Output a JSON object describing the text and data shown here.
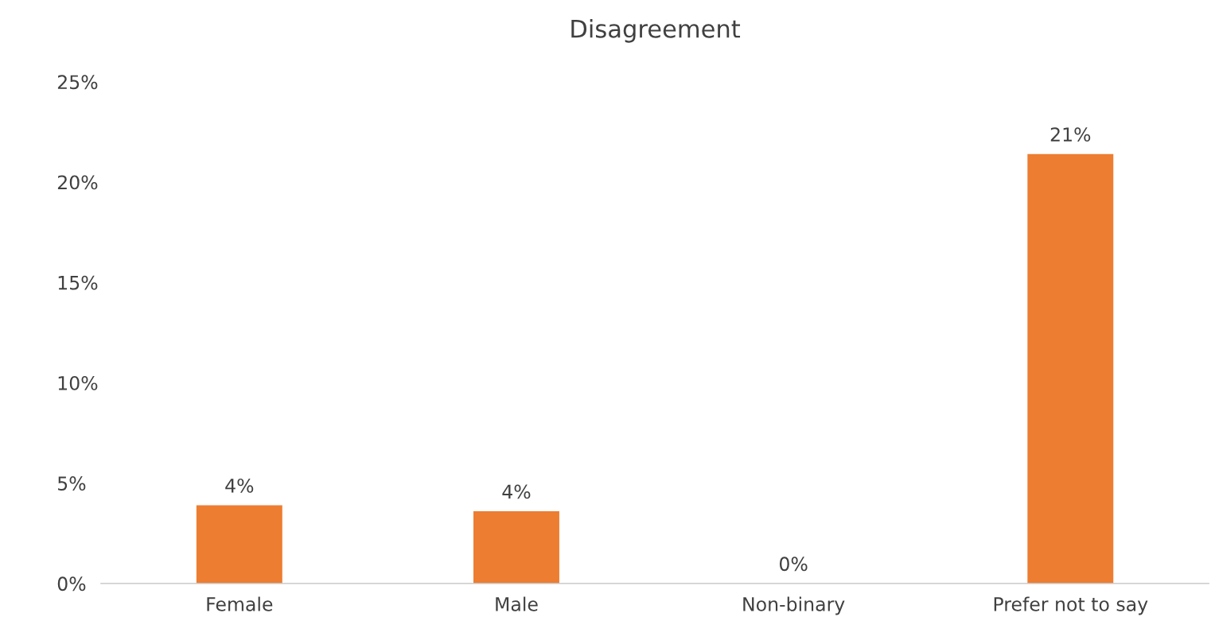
{
  "chart_data": {
    "type": "bar",
    "title": "Disagreement",
    "categories": [
      "Female",
      "Male",
      "Non-binary",
      "Prefer not to say"
    ],
    "values": [
      3.9,
      3.6,
      0,
      21.4
    ],
    "value_labels": [
      "4%",
      "4%",
      "0%",
      "21%"
    ],
    "color": "#ed7d31",
    "ylim": [
      0,
      25
    ],
    "yticks": [
      {
        "value": 0,
        "label": "0%"
      },
      {
        "value": 5,
        "label": "5%"
      },
      {
        "value": 10,
        "label": "10%"
      },
      {
        "value": 15,
        "label": "15%"
      },
      {
        "value": 20,
        "label": "20%"
      },
      {
        "value": 25,
        "label": "25%"
      }
    ],
    "grid": false,
    "legend": false
  }
}
